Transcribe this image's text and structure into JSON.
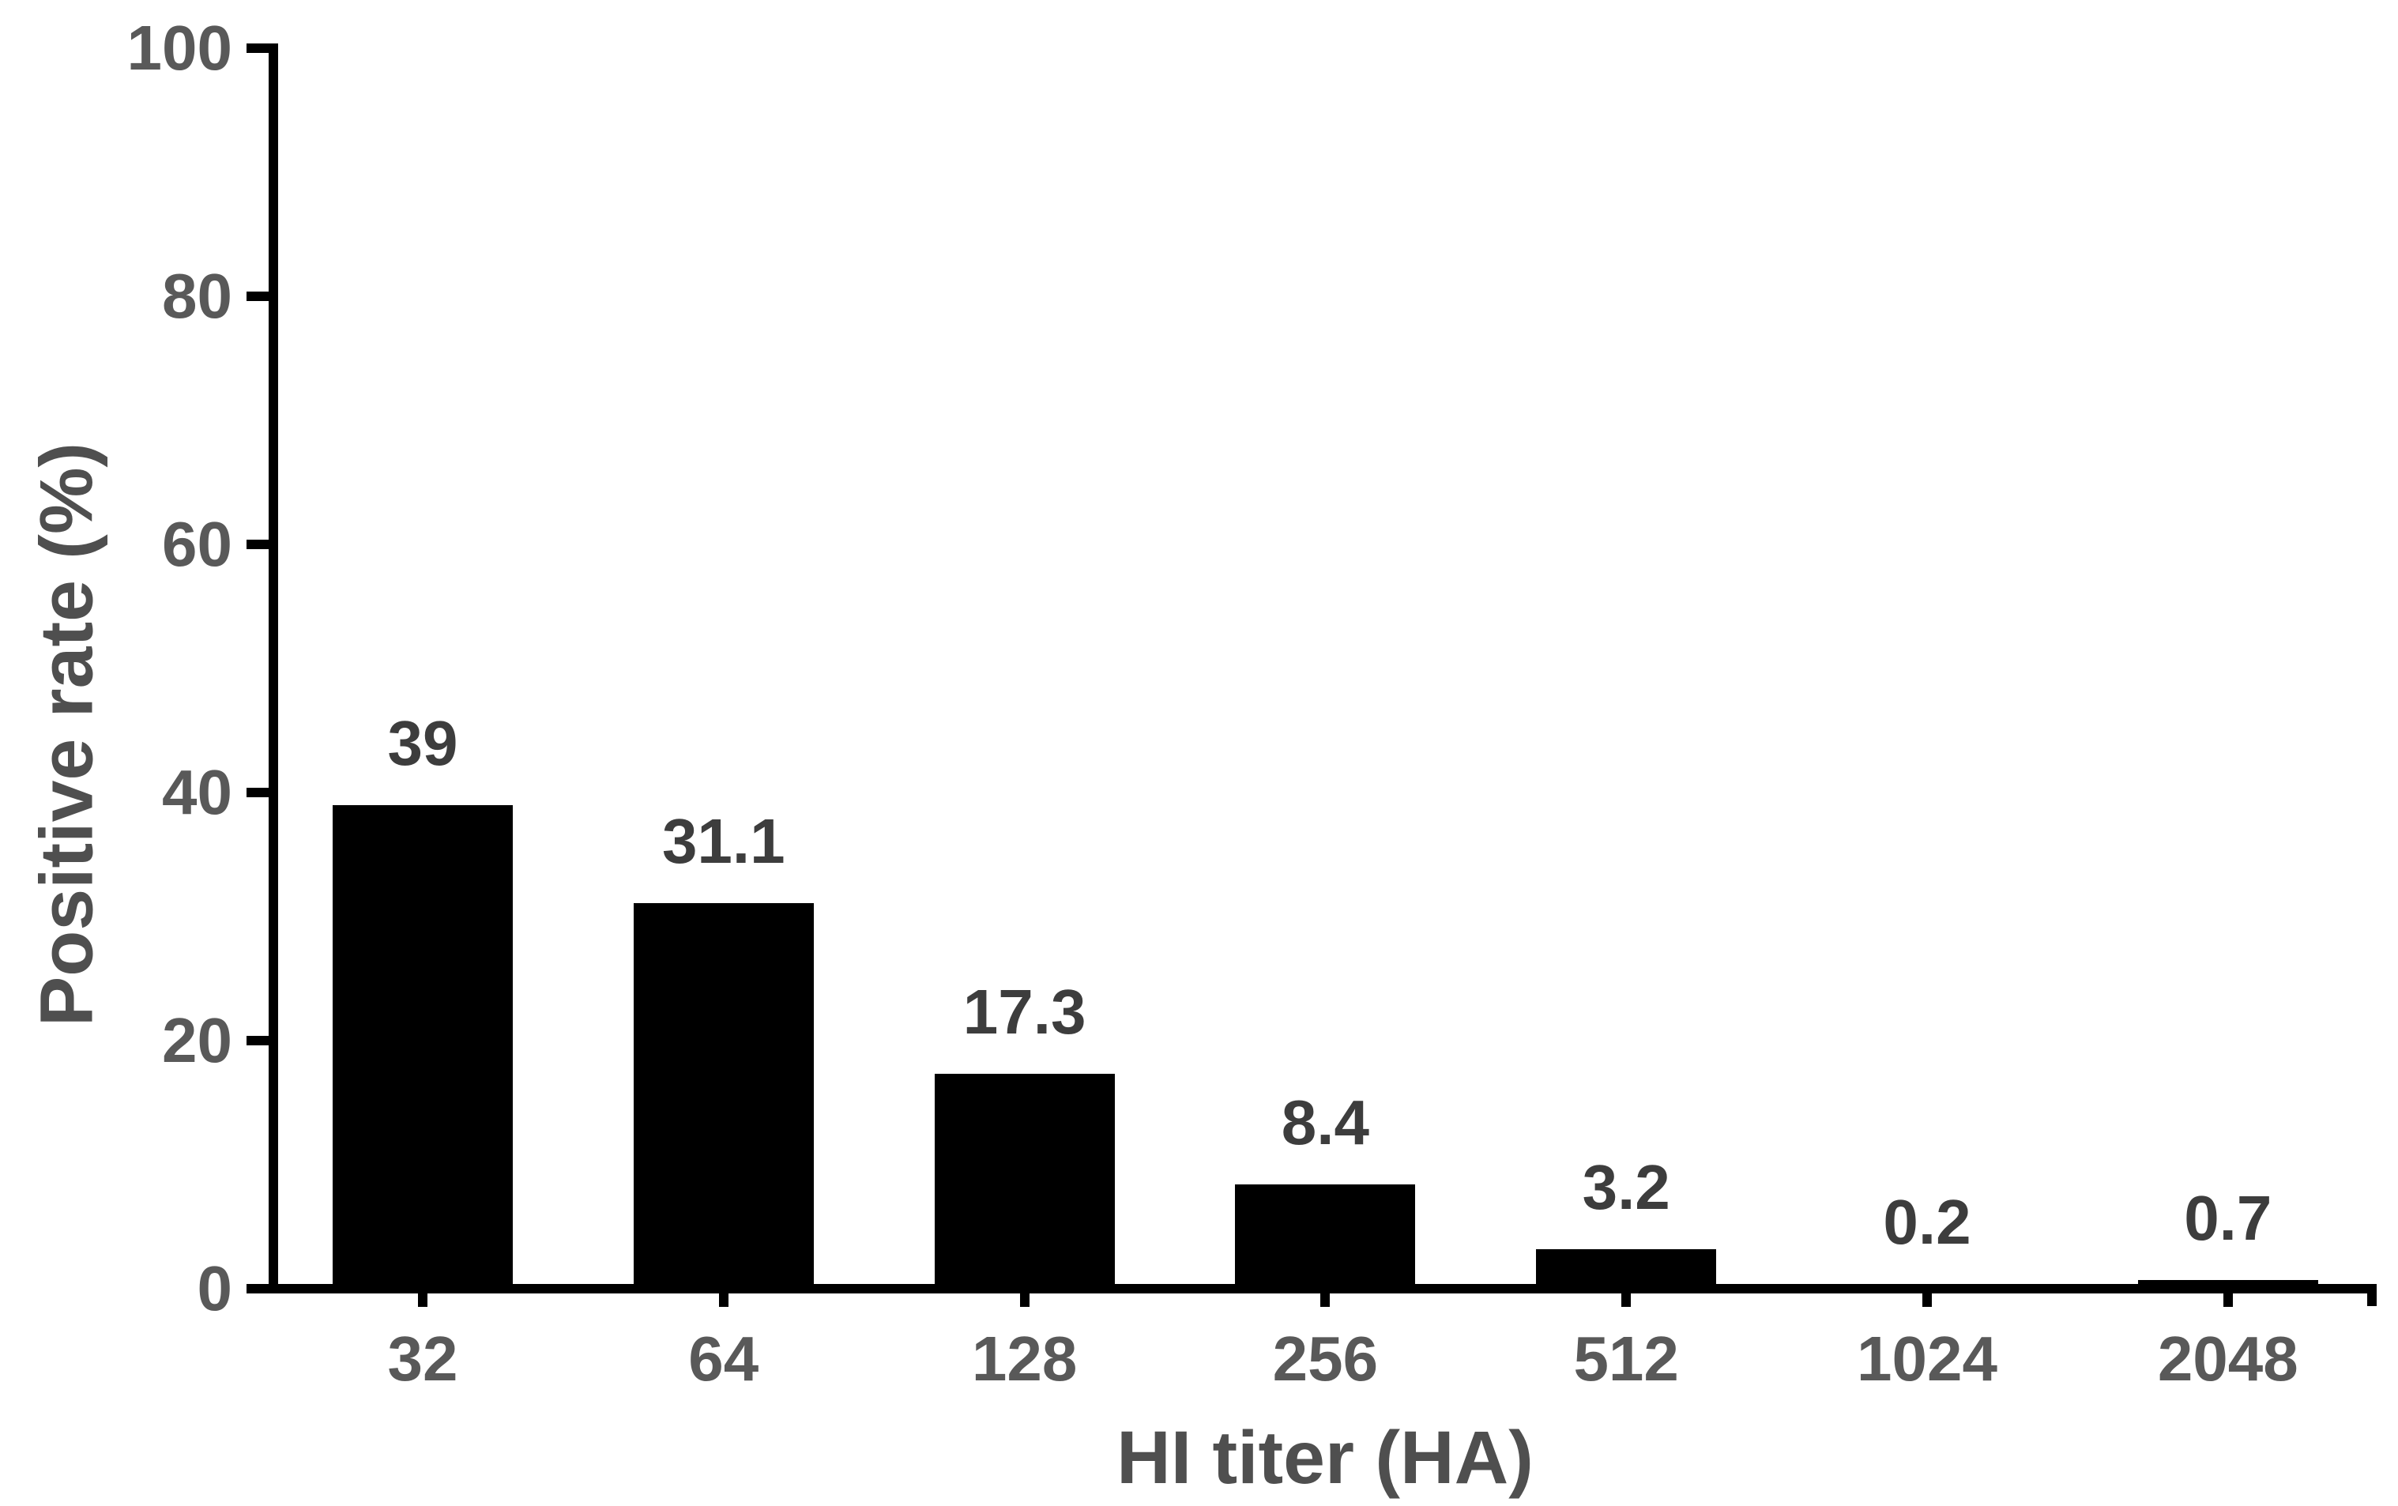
{
  "chart_data": {
    "type": "bar",
    "title": "",
    "categories": [
      "32",
      "64",
      "128",
      "256",
      "512",
      "1024",
      "2048"
    ],
    "values": [
      39,
      31.1,
      17.3,
      8.4,
      3.2,
      0.2,
      0.7
    ],
    "value_labels": [
      "39",
      "31.1",
      "17.3",
      "8.4",
      "3.2",
      "0.2",
      "0.7"
    ],
    "xlabel": "HI titer (HA)",
    "ylabel": "Positive rate (%)",
    "ylim": [
      0,
      100
    ],
    "yticks": [
      0,
      20,
      40,
      60,
      80,
      100
    ],
    "grid": false,
    "legend": "none",
    "bar_color": "#000000",
    "axis_color": "#000000",
    "tick_label_color": "#595959",
    "value_label_color": "#3d3d3d",
    "axis_title_color": "#4f4f4f",
    "background": "#ffffff"
  }
}
